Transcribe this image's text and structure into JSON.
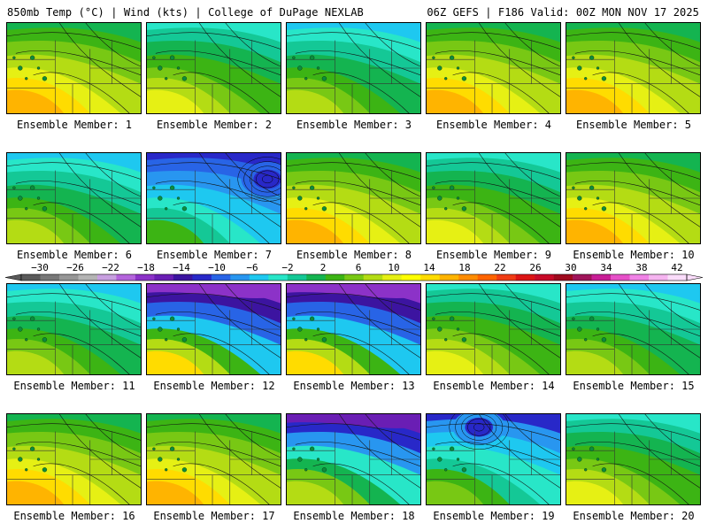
{
  "header": {
    "left": "850mb Temp (°C) | Wind (kts) | College of DuPage NEXLAB",
    "right": "06Z GEFS | F186 Valid: 00Z MON NOV 17 2025"
  },
  "members": [
    {
      "label": "Ensemble Member: 1",
      "style": "warm"
    },
    {
      "label": "Ensemble Member: 2",
      "style": "mild"
    },
    {
      "label": "Ensemble Member: 3",
      "style": "cool"
    },
    {
      "label": "Ensemble Member: 4",
      "style": "warm"
    },
    {
      "label": "Ensemble Member: 5",
      "style": "warm"
    },
    {
      "label": "Ensemble Member: 6",
      "style": "cool"
    },
    {
      "label": "Ensemble Member: 7",
      "style": "low"
    },
    {
      "label": "Ensemble Member: 8",
      "style": "warm"
    },
    {
      "label": "Ensemble Member: 9",
      "style": "mild"
    },
    {
      "label": "Ensemble Member: 10",
      "style": "warm"
    },
    {
      "label": "Ensemble Member: 11",
      "style": "cool"
    },
    {
      "label": "Ensemble Member: 12",
      "style": "trough"
    },
    {
      "label": "Ensemble Member: 13",
      "style": "trough"
    },
    {
      "label": "Ensemble Member: 14",
      "style": "mild"
    },
    {
      "label": "Ensemble Member: 15",
      "style": "cool"
    },
    {
      "label": "Ensemble Member: 16",
      "style": "warm"
    },
    {
      "label": "Ensemble Member: 17",
      "style": "warm"
    },
    {
      "label": "Ensemble Member: 18",
      "style": "deep"
    },
    {
      "label": "Ensemble Member: 19",
      "style": "low2"
    },
    {
      "label": "Ensemble Member: 20",
      "style": "mild"
    }
  ],
  "colorbar": {
    "ticks": [
      "−30",
      "−26",
      "−22",
      "−18",
      "−14",
      "−10",
      "−6",
      "−2",
      "2",
      "6",
      "10",
      "14",
      "18",
      "22",
      "26",
      "30",
      "34",
      "38",
      "42"
    ],
    "colors": [
      "#5a5a5a",
      "#787878",
      "#969696",
      "#b4b4b4",
      "#c8a0e0",
      "#b464dc",
      "#8c32c8",
      "#6a1eb4",
      "#3c14a0",
      "#2828c8",
      "#2864e6",
      "#2896f0",
      "#1ec8f0",
      "#28e6c8",
      "#14c896",
      "#14b450",
      "#3cb414",
      "#78c814",
      "#b4dc14",
      "#e6f014",
      "#ffff00",
      "#ffdc00",
      "#ffb400",
      "#ff8c00",
      "#ff6400",
      "#f03c14",
      "#dc1414",
      "#c80a28",
      "#a00a1e",
      "#a0145a",
      "#c81e96",
      "#e650c8",
      "#f082e6",
      "#f5b4f0",
      "#fadcfa"
    ]
  }
}
